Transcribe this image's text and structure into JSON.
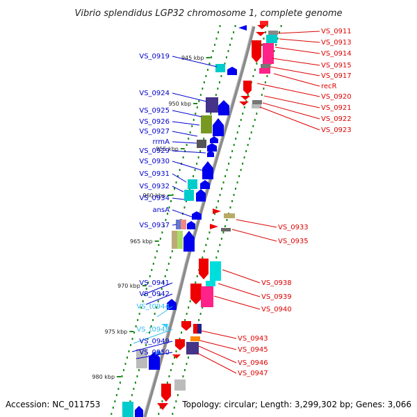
{
  "title": "Vibrio splendidus LGP32 chromosome 1, complete genome",
  "accession": "Accession: NC_011753",
  "topology": "Topology: circular; Length: 3,299,302 bp; Genes: 3,066",
  "colors": {
    "forward": "#ff0000",
    "reverse": "#0000ff",
    "rna": "#33ccff",
    "backbone": "#909090",
    "ticks": "#1a8a1a"
  },
  "kbp_marks": [
    "945 kbp",
    "950 kbp",
    "955 kbp",
    "960 kbp",
    "965 kbp",
    "970 kbp",
    "975 kbp",
    "980 kbp"
  ],
  "left_labels": [
    {
      "text": "VS_0919",
      "color": "#0000cc"
    },
    {
      "text": "VS_0924",
      "color": "#0000cc"
    },
    {
      "text": "VS_0925",
      "color": "#0000cc"
    },
    {
      "text": "VS_0926",
      "color": "#0000cc"
    },
    {
      "text": "VS_0927",
      "color": "#0000cc"
    },
    {
      "text": "rrmA",
      "color": "#0000cc"
    },
    {
      "text": "VS_0929",
      "color": "#0000cc"
    },
    {
      "text": "VS_0930",
      "color": "#0000cc"
    },
    {
      "text": "VS_0931",
      "color": "#0000cc"
    },
    {
      "text": "VS_0932",
      "color": "#0000cc"
    },
    {
      "text": "VS_0934",
      "color": "#0000cc"
    },
    {
      "text": "ansA",
      "color": "#0000cc"
    },
    {
      "text": "VS_0937",
      "color": "#0000cc"
    },
    {
      "text": "VS_0941",
      "color": "#0000cc"
    },
    {
      "text": "VS_0942",
      "color": "#0000cc"
    },
    {
      "text": "VS_t0944",
      "color": "#33bbee"
    },
    {
      "text": "VS_t0948",
      "color": "#33bbee"
    },
    {
      "text": "VS_0949",
      "color": "#0000cc"
    },
    {
      "text": "VS_0950",
      "color": "#0000cc"
    }
  ],
  "right_labels": [
    {
      "text": "VS_0911",
      "color": "#dd0000"
    },
    {
      "text": "VS_0913",
      "color": "#dd0000"
    },
    {
      "text": "VS_0914",
      "color": "#dd0000"
    },
    {
      "text": "VS_0915",
      "color": "#dd0000"
    },
    {
      "text": "VS_0917",
      "color": "#dd0000"
    },
    {
      "text": "recR",
      "color": "#dd0000"
    },
    {
      "text": "VS_0920",
      "color": "#dd0000"
    },
    {
      "text": "VS_0921",
      "color": "#dd0000"
    },
    {
      "text": "VS_0922",
      "color": "#dd0000"
    },
    {
      "text": "VS_0923",
      "color": "#dd0000"
    },
    {
      "text": "VS_0933",
      "color": "#dd0000"
    },
    {
      "text": "VS_0935",
      "color": "#dd0000"
    },
    {
      "text": "VS_0938",
      "color": "#dd0000"
    },
    {
      "text": "VS_0939",
      "color": "#dd0000"
    },
    {
      "text": "VS_0940",
      "color": "#dd0000"
    },
    {
      "text": "VS_0943",
      "color": "#dd0000"
    },
    {
      "text": "VS_0945",
      "color": "#dd0000"
    },
    {
      "text": "VS_0946",
      "color": "#dd0000"
    },
    {
      "text": "VS_0947",
      "color": "#dd0000"
    }
  ]
}
